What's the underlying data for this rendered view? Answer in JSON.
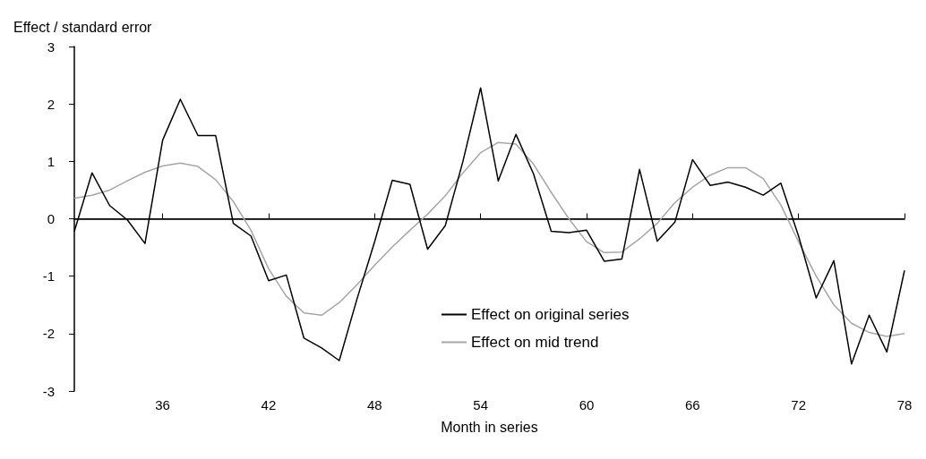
{
  "chart_data": {
    "type": "line",
    "ylabel": "Effect / standard error",
    "xlabel": "Month in series",
    "x": [
      31,
      32,
      33,
      34,
      35,
      36,
      37,
      38,
      39,
      40,
      41,
      42,
      43,
      44,
      45,
      46,
      47,
      48,
      49,
      50,
      51,
      52,
      53,
      54,
      55,
      56,
      57,
      58,
      59,
      60,
      61,
      62,
      63,
      64,
      65,
      66,
      67,
      68,
      69,
      70,
      71,
      72,
      73,
      74,
      75,
      76,
      77,
      78
    ],
    "series": [
      {
        "name": "Effect on original series",
        "color": "#000000",
        "values": [
          -0.22,
          0.8,
          0.23,
          -0.02,
          -0.43,
          1.37,
          2.08,
          1.45,
          1.45,
          -0.08,
          -0.3,
          -1.08,
          -0.98,
          -2.08,
          -2.25,
          -2.47,
          -1.4,
          -0.4,
          0.67,
          0.6,
          -0.53,
          -0.12,
          1.0,
          2.28,
          0.66,
          1.47,
          0.78,
          -0.22,
          -0.24,
          -0.2,
          -0.74,
          -0.7,
          0.86,
          -0.39,
          -0.06,
          1.03,
          0.58,
          0.64,
          0.55,
          0.41,
          0.62,
          -0.3,
          -1.38,
          -0.73,
          -2.53,
          -1.68,
          -2.32,
          -0.9
        ]
      },
      {
        "name": "Effect on mid trend",
        "color": "#a6a6a6",
        "values": [
          0.36,
          0.41,
          0.5,
          0.66,
          0.81,
          0.92,
          0.97,
          0.91,
          0.68,
          0.3,
          -0.2,
          -0.87,
          -1.35,
          -1.64,
          -1.68,
          -1.46,
          -1.15,
          -0.81,
          -0.49,
          -0.2,
          0.08,
          0.4,
          0.8,
          1.15,
          1.33,
          1.3,
          0.95,
          0.46,
          0.0,
          -0.4,
          -0.59,
          -0.58,
          -0.35,
          -0.08,
          0.28,
          0.55,
          0.76,
          0.89,
          0.89,
          0.7,
          0.24,
          -0.4,
          -1.0,
          -1.5,
          -1.82,
          -1.98,
          -2.05,
          -2.0
        ]
      }
    ],
    "xlim": [
      31,
      78
    ],
    "xticks": [
      36,
      42,
      48,
      54,
      60,
      66,
      72,
      78
    ],
    "ylim": [
      -3,
      3
    ],
    "yticks": [
      -3,
      -2,
      -1,
      0,
      1,
      2,
      3
    ],
    "ref_lines": [
      {
        "axis": "y",
        "value": 0,
        "color": "#000000"
      }
    ],
    "grid": false,
    "legend": "bottom",
    "marker": "none",
    "line_style": "solid"
  }
}
